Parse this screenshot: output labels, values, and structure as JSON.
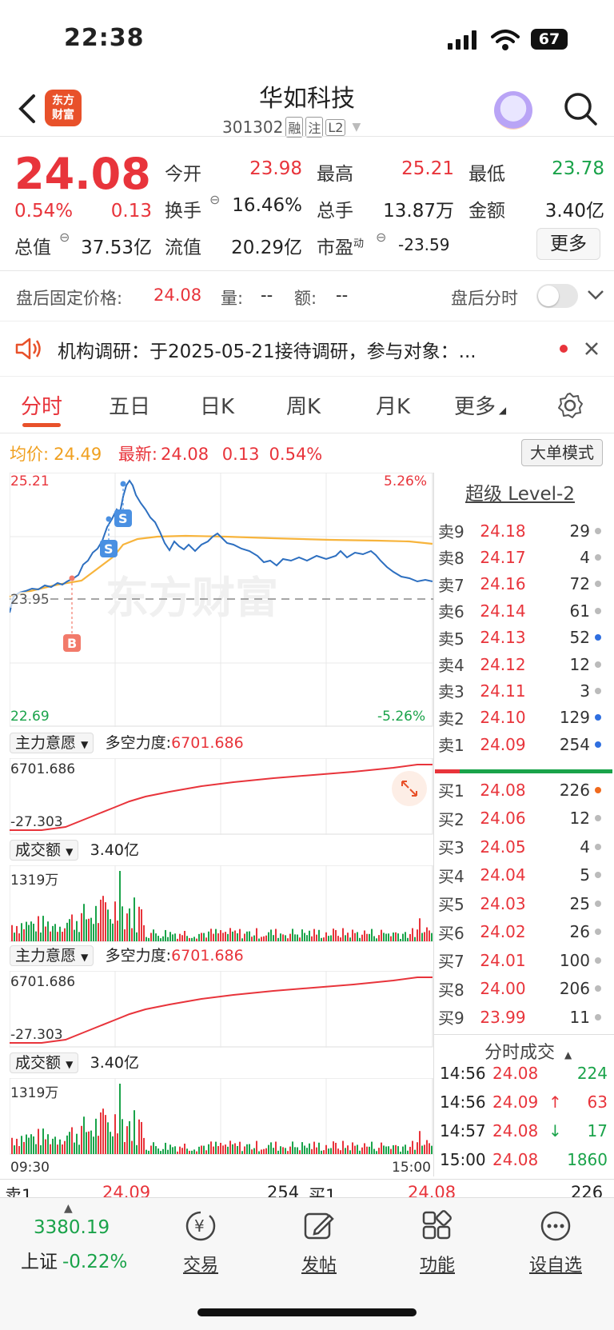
{
  "status": {
    "time": "22:38",
    "battery": "67"
  },
  "header": {
    "brand_line1": "东方",
    "brand_line2": "财富",
    "name": "华如科技",
    "code": "301302",
    "tags": [
      "融",
      "注",
      "L2"
    ]
  },
  "quote": {
    "price": "24.08",
    "change_pct": "0.54%",
    "change": "0.13",
    "open_label": "今开",
    "open": "23.98",
    "high_label": "最高",
    "high": "25.21",
    "low_label": "最低",
    "low": "23.78",
    "turnover_label": "换手",
    "turnover": "16.46%",
    "volume_label": "总手",
    "volume": "13.87万",
    "amount_label": "金额",
    "amount": "3.40亿",
    "mktcap_label": "总值",
    "mktcap": "37.53亿",
    "float_label": "流值",
    "float": "20.29亿",
    "pe_label": "市盈",
    "pe_sup": "动",
    "pe": "-23.59",
    "more": "更多"
  },
  "after_hours": {
    "label": "盘后固定价格:",
    "price": "24.08",
    "vol_label": "量:",
    "vol": "--",
    "amt_label": "额:",
    "amt": "--",
    "toggle_label": "盘后分时"
  },
  "notice": {
    "text": "机构调研：于2025-05-21接待调研，参与对象：..."
  },
  "tabs": [
    "分时",
    "五日",
    "日K",
    "周K",
    "月K",
    "更多"
  ],
  "chart_info": {
    "avg_label": "均价:",
    "avg": "24.49",
    "last_label": "最新:",
    "last": "24.08",
    "chg": "0.13",
    "pct": "0.54%",
    "mode_btn": "大单模式"
  },
  "chart": {
    "ymax": "25.21",
    "ymin": "22.69",
    "pct_max": "5.26%",
    "pct_min": "-5.26%",
    "ref": "23.95",
    "marker_b": "B",
    "marker_s": "S",
    "watermark": "东方财富",
    "time_start": "09:30",
    "time_end": "15:00"
  },
  "indicator1": {
    "name": "主力意愿",
    "label": "多空力度:",
    "value": "6701.686",
    "top": "6701.686",
    "bottom": "-27.303"
  },
  "volume1": {
    "name": "成交额",
    "value": "3.40亿",
    "top": "1319万"
  },
  "indicator2": {
    "name": "主力意愿",
    "label": "多空力度:",
    "value": "6701.686",
    "top": "6701.686",
    "bottom": "-27.303"
  },
  "volume2": {
    "name": "成交额",
    "value": "3.40亿",
    "top": "1319万"
  },
  "level2": {
    "title": "超级 Level-2"
  },
  "sells": [
    {
      "label": "卖9",
      "price": "24.18",
      "vol": "29",
      "dot": "#bbbbbb"
    },
    {
      "label": "卖8",
      "price": "24.17",
      "vol": "4",
      "dot": "#bbbbbb"
    },
    {
      "label": "卖7",
      "price": "24.16",
      "vol": "72",
      "dot": "#bbbbbb"
    },
    {
      "label": "卖6",
      "price": "24.14",
      "vol": "61",
      "dot": "#bbbbbb"
    },
    {
      "label": "卖5",
      "price": "24.13",
      "vol": "52",
      "dot": "#2f6fe0"
    },
    {
      "label": "卖4",
      "price": "24.12",
      "vol": "12",
      "dot": "#bbbbbb"
    },
    {
      "label": "卖3",
      "price": "24.11",
      "vol": "3",
      "dot": "#bbbbbb"
    },
    {
      "label": "卖2",
      "price": "24.10",
      "vol": "129",
      "dot": "#2f6fe0"
    },
    {
      "label": "卖1",
      "price": "24.09",
      "vol": "254",
      "dot": "#2f6fe0"
    }
  ],
  "buys": [
    {
      "label": "买1",
      "price": "24.08",
      "vol": "226",
      "dot": "#f06a1d"
    },
    {
      "label": "买2",
      "price": "24.06",
      "vol": "12",
      "dot": "#bbbbbb"
    },
    {
      "label": "买3",
      "price": "24.05",
      "vol": "4",
      "dot": "#bbbbbb"
    },
    {
      "label": "买4",
      "price": "24.04",
      "vol": "5",
      "dot": "#bbbbbb"
    },
    {
      "label": "买5",
      "price": "24.03",
      "vol": "25",
      "dot": "#bbbbbb"
    },
    {
      "label": "买6",
      "price": "24.02",
      "vol": "26",
      "dot": "#bbbbbb"
    },
    {
      "label": "买7",
      "price": "24.01",
      "vol": "100",
      "dot": "#bbbbbb"
    },
    {
      "label": "买8",
      "price": "24.00",
      "vol": "206",
      "dot": "#bbbbbb"
    },
    {
      "label": "买9",
      "price": "23.99",
      "vol": "11",
      "dot": "#bbbbbb"
    }
  ],
  "ticks_title": "分时成交",
  "ticks": [
    {
      "time": "14:56",
      "price": "24.08",
      "dir": "",
      "vol": "224"
    },
    {
      "time": "14:56",
      "price": "24.09",
      "dir": "↑",
      "vol": "63"
    },
    {
      "time": "14:57",
      "price": "24.08",
      "dir": "↓",
      "vol": "17"
    },
    {
      "time": "15:00",
      "price": "24.08",
      "dir": "",
      "vol": "1860"
    }
  ],
  "footer_strip": {
    "sell_label": "卖1",
    "sell_price": "24.09",
    "sell_vol": "254",
    "buy_label": "买1",
    "buy_price": "24.08",
    "buy_vol": "226"
  },
  "bottom": {
    "index_value": "3380.19",
    "index_name": "上证",
    "index_pct": "-0.22%",
    "nav": [
      "交易",
      "发帖",
      "功能",
      "设自选"
    ]
  }
}
